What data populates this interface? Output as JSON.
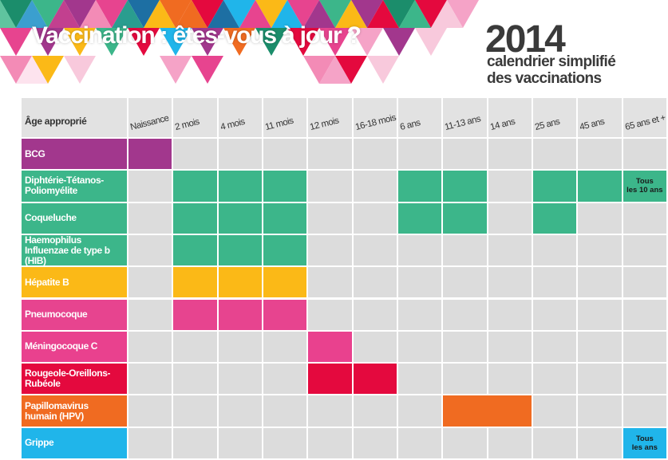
{
  "header": {
    "title": "Vaccination : êtes-vous à jour ?",
    "year": "2014",
    "subtitle": [
      "calendrier simplifié",
      "des vaccinations"
    ]
  },
  "table": {
    "corner": "Âge approprié",
    "columns": [
      "Naissance",
      "2 mois",
      "4 mois",
      "11 mois",
      "12 mois",
      "16-18 mois",
      "6 ans",
      "11-13 ans",
      "14 ans",
      "25 ans",
      "45 ans",
      "65 ans et +"
    ],
    "rows": [
      {
        "label": "BCG",
        "color": "#a2378d",
        "cells": [
          true,
          false,
          false,
          false,
          false,
          false,
          false,
          false,
          false,
          false,
          false,
          false
        ]
      },
      {
        "label": "Diphtérie-Tétanos-\nPoliomyélite",
        "color": "#3cb68a",
        "cells": [
          false,
          true,
          true,
          true,
          false,
          false,
          true,
          true,
          false,
          true,
          true,
          "Tous\nles 10 ans"
        ]
      },
      {
        "label": "Coqueluche",
        "color": "#3cb68a",
        "cells": [
          false,
          true,
          true,
          true,
          false,
          false,
          true,
          true,
          false,
          true,
          false,
          false
        ]
      },
      {
        "label": "Haemophilus\nInfluenzae de type b (HIB)",
        "color": "#3cb68a",
        "cells": [
          false,
          true,
          true,
          true,
          false,
          false,
          false,
          false,
          false,
          false,
          false,
          false
        ]
      },
      {
        "label": "Hépatite B",
        "color": "#fbb917",
        "cells": [
          false,
          true,
          true,
          true,
          false,
          false,
          false,
          false,
          false,
          false,
          false,
          false
        ]
      },
      {
        "label": "Pneumocoque",
        "color": "#e7448f",
        "cells": [
          false,
          true,
          true,
          true,
          false,
          false,
          false,
          false,
          false,
          false,
          false,
          false
        ]
      },
      {
        "label": "Méningocoque C",
        "color": "#e9418e",
        "cells": [
          false,
          false,
          false,
          false,
          true,
          false,
          false,
          false,
          false,
          false,
          false,
          false
        ]
      },
      {
        "label": "Rougeole-Oreillons-\nRubéole",
        "color": "#e4093e",
        "cells": [
          false,
          false,
          false,
          false,
          true,
          true,
          false,
          false,
          false,
          false,
          false,
          false
        ]
      },
      {
        "label": "Papillomavirus\nhumain (HPV)",
        "color": "#f06b21",
        "merged": true,
        "cells": [
          false,
          false,
          false,
          false,
          false,
          false,
          false,
          true,
          true,
          false,
          false,
          false
        ]
      },
      {
        "label": "Grippe",
        "color": "#20b5ea",
        "cells": [
          false,
          false,
          false,
          false,
          false,
          false,
          false,
          false,
          false,
          false,
          false,
          "Tous\nles ans"
        ]
      }
    ]
  }
}
